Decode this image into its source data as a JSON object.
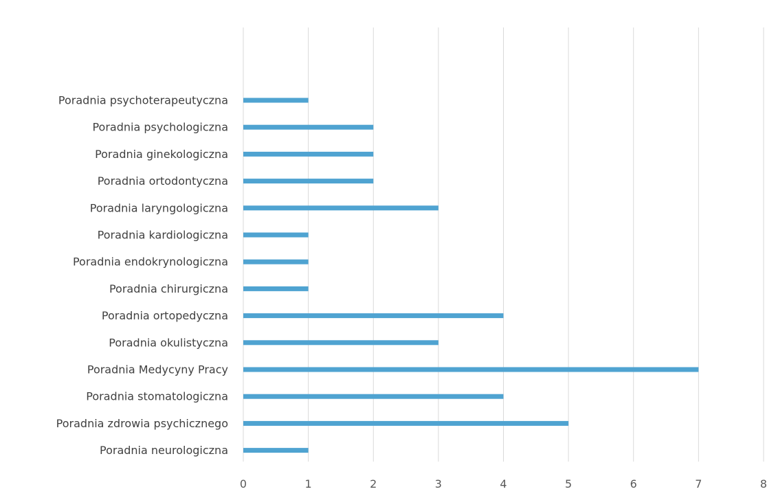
{
  "chart_data": {
    "type": "bar",
    "orientation": "horizontal",
    "categories": [
      "Poradnia psychoterapeutyczna",
      "Poradnia psychologiczna",
      "Poradnia ginekologiczna",
      "Poradnia ortodontyczna",
      "Poradnia laryngologiczna",
      "Poradnia kardiologiczna",
      "Poradnia endokrynologiczna",
      "Poradnia chirurgiczna",
      "Poradnia ortopedyczna",
      "Poradnia okulistyczna",
      "Poradnia Medycyny Pracy",
      "Poradnia stomatologiczna",
      "Poradnia zdrowia psychicznego",
      "Poradnia neurologiczna"
    ],
    "values": [
      1,
      2,
      2,
      2,
      3,
      1,
      1,
      1,
      4,
      3,
      7,
      4,
      5,
      1
    ],
    "title": "",
    "xlabel": "",
    "ylabel": "",
    "xlim": [
      0,
      8
    ],
    "xticks": [
      "0",
      "1",
      "2",
      "3",
      "4",
      "5",
      "6",
      "7",
      "8"
    ],
    "grid": "vertical",
    "legend": "none",
    "bar_color": "#4fa3d1",
    "grid_color": "#d9d9d9"
  }
}
